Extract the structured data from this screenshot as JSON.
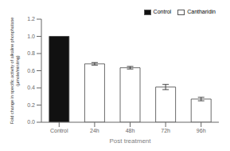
{
  "chart_data": {
    "type": "bar",
    "categories": [
      "Control",
      "24h",
      "48h",
      "72h",
      "96h"
    ],
    "series": [
      {
        "name": "Control",
        "color": "#111111",
        "values": [
          1.0,
          null,
          null,
          null,
          null
        ],
        "errors": [
          null,
          null,
          null,
          null,
          null
        ]
      },
      {
        "name": "Cantharidin",
        "color": "#ffffff",
        "values": [
          null,
          0.68,
          0.635,
          0.41,
          0.27
        ],
        "errors": [
          null,
          0.015,
          0.015,
          0.03,
          0.02
        ]
      }
    ],
    "xlabel": "Post treatment",
    "ylabel": "Fold change in specific activity of alkaline phosphatase\n(μmole/min/mg)",
    "ylim": [
      0,
      1.2
    ],
    "yticks": [
      {
        "value": 0,
        "label": "0.0"
      },
      0.2,
      0.4,
      0.6,
      0.8,
      {
        "value": 1.0,
        "label": "1.0"
      },
      1.2
    ],
    "legend": "upper right",
    "grid": false
  }
}
